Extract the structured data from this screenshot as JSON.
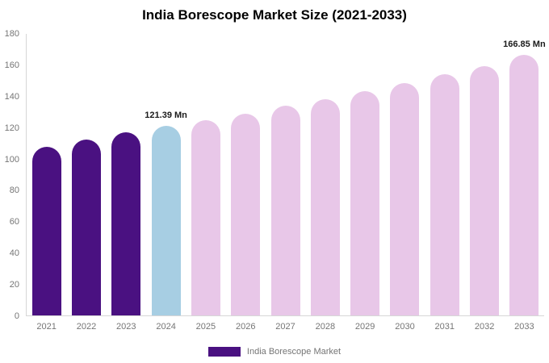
{
  "chart_data": {
    "type": "bar",
    "title": "India Borescope Market Size (2021-2033)",
    "categories": [
      "2021",
      "2022",
      "2023",
      "2024",
      "2025",
      "2026",
      "2027",
      "2028",
      "2029",
      "2030",
      "2031",
      "2032",
      "2033"
    ],
    "values": [
      108,
      112.5,
      117,
      121.39,
      125,
      129,
      134,
      138,
      143.5,
      148.5,
      154,
      159.5,
      166.85
    ],
    "ylim": [
      0,
      180
    ],
    "ytick_step": 20,
    "xlabel": "",
    "ylabel": "",
    "grid": false,
    "legend_position": "bottom",
    "legend_label": "India Borescope Market",
    "legend_color": "#4a1181",
    "bar_colors": [
      "#4a1181",
      "#4a1181",
      "#4a1181",
      "#a7cee3",
      "#e8c7e8",
      "#e8c7e8",
      "#e8c7e8",
      "#e8c7e8",
      "#e8c7e8",
      "#e8c7e8",
      "#e8c7e8",
      "#e8c7e8",
      "#e8c7e8"
    ],
    "annotations": [
      {
        "index": 3,
        "text": "121.39 Mn"
      },
      {
        "index": 12,
        "text": "166.85 Mn"
      }
    ]
  }
}
